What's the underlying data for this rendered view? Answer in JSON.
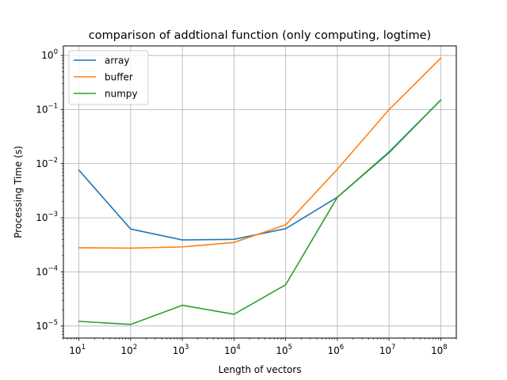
{
  "chart_data": {
    "type": "line",
    "title": "comparison of addtional function (only computing, logtime)",
    "xlabel": "Length of vectors",
    "ylabel": "Processing Time (s)",
    "xscale": "log",
    "yscale": "log",
    "xlim": [
      5,
      200000000
    ],
    "ylim": [
      6e-06,
      1.5
    ],
    "grid": true,
    "legend_position": "top-left",
    "x": [
      10,
      100,
      1000,
      10000,
      100000,
      1000000,
      10000000,
      100000000
    ],
    "xticks": [
      {
        "value": 10,
        "base": "10",
        "exp": "1"
      },
      {
        "value": 100,
        "base": "10",
        "exp": "2"
      },
      {
        "value": 1000,
        "base": "10",
        "exp": "3"
      },
      {
        "value": 10000,
        "base": "10",
        "exp": "4"
      },
      {
        "value": 100000,
        "base": "10",
        "exp": "5"
      },
      {
        "value": 1000000,
        "base": "10",
        "exp": "6"
      },
      {
        "value": 10000000,
        "base": "10",
        "exp": "7"
      },
      {
        "value": 100000000,
        "base": "10",
        "exp": "8"
      }
    ],
    "yticks": [
      {
        "value": 1e-05,
        "base": "10",
        "exp": "−5"
      },
      {
        "value": 0.0001,
        "base": "10",
        "exp": "−4"
      },
      {
        "value": 0.001,
        "base": "10",
        "exp": "−3"
      },
      {
        "value": 0.01,
        "base": "10",
        "exp": "−2"
      },
      {
        "value": 0.1,
        "base": "10",
        "exp": "−1"
      },
      {
        "value": 1,
        "base": "10",
        "exp": "0"
      }
    ],
    "series": [
      {
        "name": "array",
        "color": "#1f77b4",
        "values": [
          0.0076,
          0.00062,
          0.00039,
          0.0004,
          0.00063,
          0.0024,
          0.016,
          0.15
        ]
      },
      {
        "name": "buffer",
        "color": "#ff7f0e",
        "values": [
          0.00028,
          0.000275,
          0.00029,
          0.00035,
          0.00074,
          0.0079,
          0.1,
          0.89
        ]
      },
      {
        "name": "numpy",
        "color": "#2ca02c",
        "values": [
          1.22e-05,
          1.07e-05,
          2.42e-05,
          1.65e-05,
          5.8e-05,
          0.0024,
          0.0165,
          0.15
        ]
      }
    ]
  }
}
